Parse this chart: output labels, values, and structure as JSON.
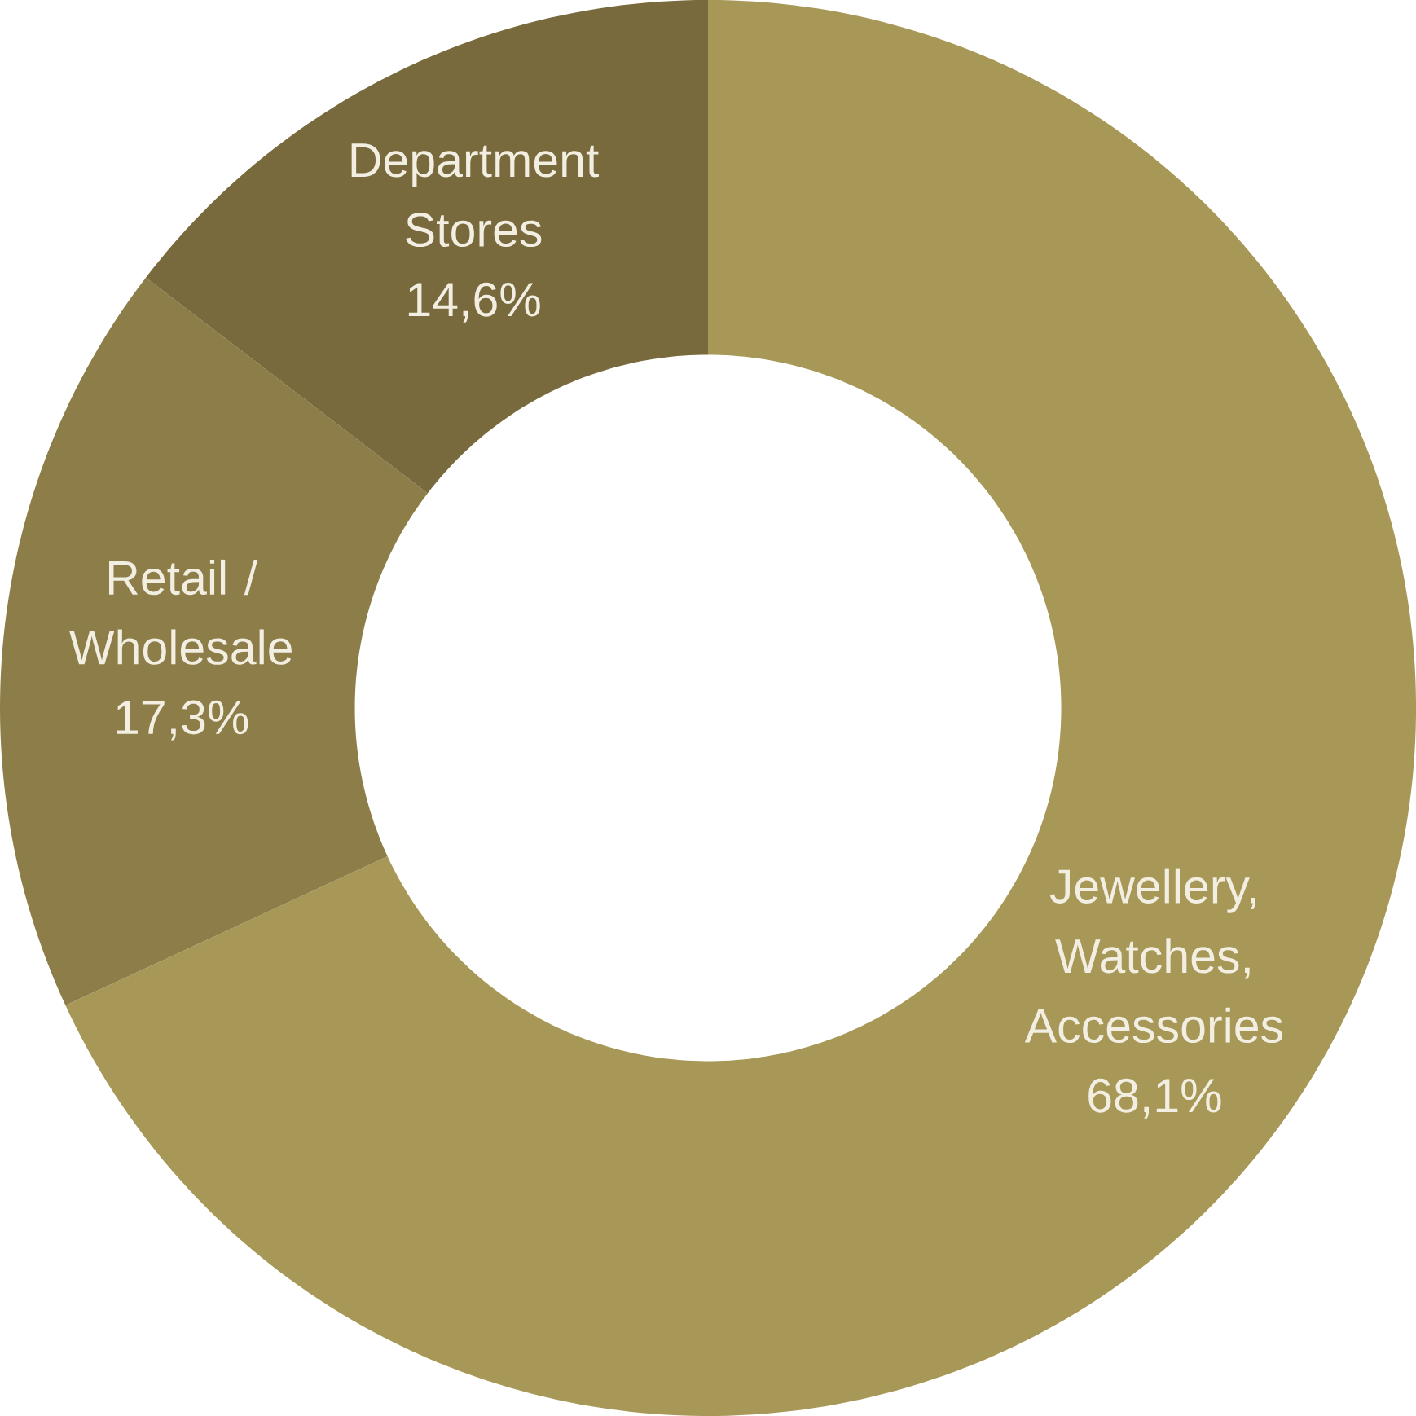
{
  "chart_data": {
    "type": "donut",
    "categories": [
      "Jewellery, Watches, Accessories",
      "Retail / Wholesale",
      "Department Stores"
    ],
    "values": [
      68.1,
      17.3,
      14.6
    ],
    "value_labels": [
      "68,1%",
      "17,3%",
      "14,6%"
    ],
    "colors": [
      "#a89858",
      "#8d7d48",
      "#786a3c"
    ]
  }
}
